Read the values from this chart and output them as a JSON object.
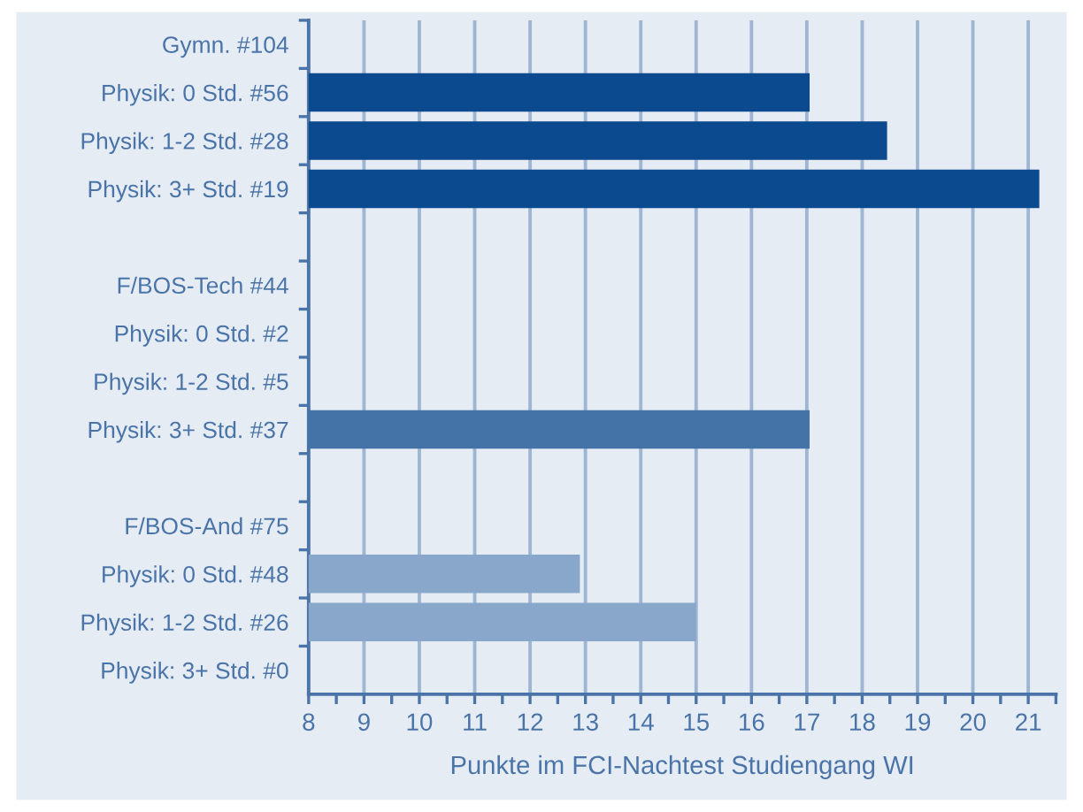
{
  "chart_data": {
    "type": "bar",
    "orientation": "horizontal",
    "xlabel": "Punkte im FCI-Nachtest Studiengang WI",
    "categories": [
      "Gymn. #104",
      "Physik: 0 Std. #56",
      "Physik: 1-2 Std. #28",
      "Physik: 3+ Std. #19",
      null,
      "F/BOS-Tech #44",
      "Physik: 0 Std. #2",
      "Physik: 1-2 Std. #5",
      "Physik: 3+ Std. #37",
      null,
      "F/BOS-And #75",
      "Physik: 0 Std. #48",
      "Physik: 1-2 Std. #26",
      "Physik: 3+ Std. #0"
    ],
    "values": [
      null,
      17.05,
      18.45,
      21.2,
      null,
      null,
      null,
      null,
      17.05,
      null,
      null,
      12.9,
      15.0,
      null
    ],
    "colors": [
      "#0b4a8f",
      "#0b4a8f",
      "#0b4a8f",
      "#0b4a8f",
      "#4473a8",
      "#4473a8",
      "#4473a8",
      "#4473a8",
      "#4473a8",
      "#88a7cb",
      "#88a7cb",
      "#88a7cb",
      "#88a7cb",
      "#88a7cb"
    ],
    "xlim": [
      8,
      21.5
    ],
    "xticks": [
      8,
      {
        "value": 8.5,
        "label": null
      },
      9,
      {
        "value": 9.5,
        "label": null
      },
      10,
      {
        "value": 10.5,
        "label": null
      },
      11,
      {
        "value": 11.5,
        "label": null
      },
      12,
      {
        "value": 12.5,
        "label": null
      },
      13,
      {
        "value": 13.5,
        "label": null
      },
      14,
      {
        "value": 14.5,
        "label": null
      },
      15,
      {
        "value": 15.5,
        "label": null
      },
      16,
      {
        "value": 16.5,
        "label": null
      },
      17,
      {
        "value": 17.5,
        "label": null
      },
      18,
      {
        "value": 18.5,
        "label": null
      },
      19,
      {
        "value": 19.5,
        "label": null
      },
      20,
      {
        "value": 20.5,
        "label": null
      },
      21,
      {
        "value": 21.5,
        "label": null
      }
    ],
    "grid": "x",
    "legend": false
  }
}
